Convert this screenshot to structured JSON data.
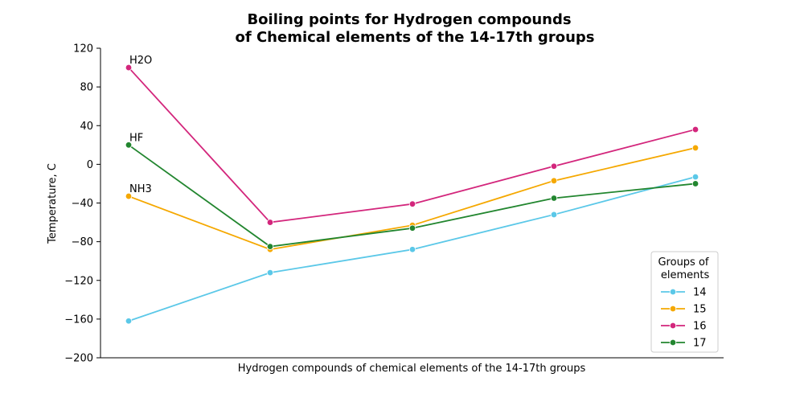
{
  "chart_data": {
    "type": "line",
    "title_line1": "Boiling points for Hydrogen compounds",
    "title_line2": "of Chemical elements of the 14-17th groups",
    "xlabel": "Hydrogen compounds of chemical elements of the 14-17th groups",
    "ylabel": "Temperature, C",
    "ylim": [
      -200,
      120
    ],
    "yticks": [
      120,
      80,
      40,
      0,
      -40,
      -80,
      -120,
      -160,
      -200
    ],
    "ytick_labels": [
      "120",
      "80",
      "40",
      "0",
      "−40",
      "−80",
      "−120",
      "−160",
      "−200"
    ],
    "x": [
      0,
      1,
      2,
      3,
      4
    ],
    "grid": false,
    "legend": {
      "title_line1": "Groups of",
      "title_line2": " elements",
      "placement": "lower-right"
    },
    "series": [
      {
        "name": "14",
        "color": "#5bc8e8",
        "values": [
          -162,
          -112,
          -88,
          -52,
          -13
        ]
      },
      {
        "name": "15",
        "color": "#f5a800",
        "values": [
          -33,
          -88,
          -63,
          -17,
          17
        ]
      },
      {
        "name": "16",
        "color": "#d3267c",
        "values": [
          100,
          -60,
          -41,
          -2,
          36
        ]
      },
      {
        "name": "17",
        "color": "#22862f",
        "values": [
          20,
          -85,
          -66,
          -35,
          -20
        ]
      }
    ],
    "annotations": [
      {
        "text": "H2O",
        "x": 0,
        "y": 100
      },
      {
        "text": "HF",
        "x": 0,
        "y": 20
      },
      {
        "text": "NH3",
        "x": 0,
        "y": -33
      }
    ]
  }
}
